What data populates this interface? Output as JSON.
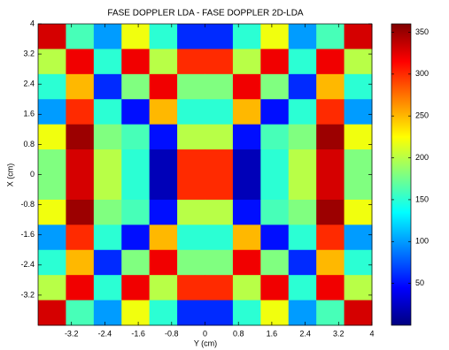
{
  "chart_data": {
    "type": "heatmap",
    "title": "FASE DOPPLER LDA - FASE DOPPLER 2D-LDA",
    "xlabel": "Y (cm)",
    "ylabel": "X (cm)",
    "xlim": [
      -4,
      4
    ],
    "xticks": [
      -3.2,
      -2.4,
      -1.6,
      -0.8,
      0,
      0.8,
      1.6,
      2.4,
      3.2,
      4
    ],
    "ylim": [
      -4,
      4
    ],
    "yticks": [
      4,
      3.2,
      2.4,
      1.6,
      0.8,
      0,
      -0.8,
      -1.6,
      -2.4,
      -3.2
    ],
    "colormap": "jet",
    "clim": [
      0,
      360
    ],
    "cticks": [
      50,
      100,
      150,
      200,
      250,
      300,
      350
    ],
    "z": [
      [
        330,
        160,
        100,
        220,
        150,
        60,
        60,
        150,
        220,
        100,
        160,
        330
      ],
      [
        200,
        320,
        150,
        320,
        200,
        300,
        300,
        200,
        320,
        150,
        320,
        200
      ],
      [
        150,
        250,
        60,
        180,
        320,
        180,
        180,
        320,
        180,
        60,
        250,
        150
      ],
      [
        100,
        300,
        150,
        50,
        250,
        150,
        150,
        250,
        50,
        150,
        300,
        100
      ],
      [
        220,
        350,
        180,
        160,
        50,
        200,
        200,
        50,
        160,
        180,
        350,
        220
      ],
      [
        180,
        330,
        200,
        150,
        20,
        300,
        300,
        20,
        150,
        200,
        330,
        180
      ],
      [
        180,
        330,
        200,
        150,
        20,
        300,
        300,
        20,
        150,
        200,
        330,
        180
      ],
      [
        220,
        350,
        180,
        160,
        50,
        200,
        200,
        50,
        160,
        180,
        350,
        220
      ],
      [
        100,
        300,
        150,
        50,
        250,
        150,
        150,
        250,
        50,
        150,
        300,
        100
      ],
      [
        150,
        250,
        60,
        180,
        320,
        180,
        180,
        320,
        180,
        60,
        250,
        150
      ],
      [
        200,
        320,
        150,
        320,
        200,
        300,
        300,
        200,
        320,
        150,
        320,
        200
      ],
      [
        330,
        160,
        100,
        220,
        150,
        60,
        60,
        150,
        220,
        100,
        160,
        330
      ]
    ]
  }
}
